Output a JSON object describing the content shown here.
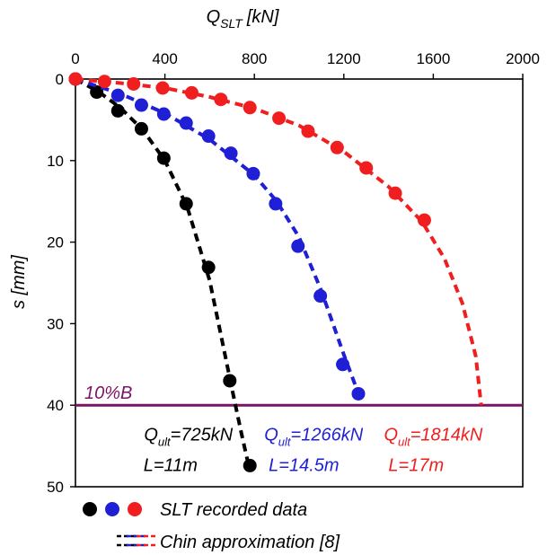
{
  "chart_data": {
    "type": "scatter",
    "xlabel": {
      "main": "Q",
      "sub": "SLT",
      "unit": "[kN]"
    },
    "ylabel": "s [mm]",
    "xlim": [
      0,
      2000
    ],
    "ylim": [
      0,
      50
    ],
    "y_inverted": true,
    "x_axis_position": "top",
    "x_ticks": [
      0,
      400,
      800,
      1200,
      1600,
      2000
    ],
    "y_ticks": [
      0,
      10,
      20,
      30,
      40,
      50
    ],
    "grid": false,
    "series": [
      {
        "key": "l11",
        "color": "#000000",
        "points": [
          {
            "x": 0,
            "y": 0
          },
          {
            "x": 95,
            "y": 1.6
          },
          {
            "x": 190,
            "y": 3.9
          },
          {
            "x": 295,
            "y": 6.1
          },
          {
            "x": 395,
            "y": 9.7
          },
          {
            "x": 495,
            "y": 15.3
          },
          {
            "x": 595,
            "y": 23.1
          },
          {
            "x": 690,
            "y": 37.0
          },
          {
            "x": 780,
            "y": 47.4
          }
        ],
        "fit": [
          {
            "x": 0,
            "y": 0
          },
          {
            "x": 100,
            "y": 1.5
          },
          {
            "x": 200,
            "y": 3.5
          },
          {
            "x": 300,
            "y": 6.2
          },
          {
            "x": 400,
            "y": 10.0
          },
          {
            "x": 500,
            "y": 15.7
          },
          {
            "x": 600,
            "y": 24.7
          },
          {
            "x": 650,
            "y": 31.3
          },
          {
            "x": 700,
            "y": 38.0
          },
          {
            "x": 740,
            "y": 43.2
          },
          {
            "x": 775,
            "y": 47.5
          }
        ]
      },
      {
        "key": "l145",
        "color": "#1f1fd6",
        "points": [
          {
            "x": 0,
            "y": 0
          },
          {
            "x": 190,
            "y": 2.0
          },
          {
            "x": 295,
            "y": 3.2
          },
          {
            "x": 395,
            "y": 4.3
          },
          {
            "x": 495,
            "y": 5.4
          },
          {
            "x": 595,
            "y": 7.0
          },
          {
            "x": 695,
            "y": 9.1
          },
          {
            "x": 795,
            "y": 11.6
          },
          {
            "x": 895,
            "y": 15.3
          },
          {
            "x": 995,
            "y": 20.5
          },
          {
            "x": 1095,
            "y": 26.6
          },
          {
            "x": 1195,
            "y": 35.0
          },
          {
            "x": 1265,
            "y": 38.6
          }
        ],
        "fit": [
          {
            "x": 0,
            "y": 0
          },
          {
            "x": 200,
            "y": 1.8
          },
          {
            "x": 400,
            "y": 4.2
          },
          {
            "x": 600,
            "y": 7.4
          },
          {
            "x": 800,
            "y": 11.8
          },
          {
            "x": 900,
            "y": 15.0
          },
          {
            "x": 1000,
            "y": 19.4
          },
          {
            "x": 1100,
            "y": 26.0
          },
          {
            "x": 1200,
            "y": 33.8
          },
          {
            "x": 1266,
            "y": 38.6
          }
        ]
      },
      {
        "key": "l17",
        "color": "#f01e1e",
        "points": [
          {
            "x": 0,
            "y": 0
          },
          {
            "x": 130,
            "y": 0.3
          },
          {
            "x": 260,
            "y": 0.6
          },
          {
            "x": 390,
            "y": 1.1
          },
          {
            "x": 520,
            "y": 1.7
          },
          {
            "x": 650,
            "y": 2.5
          },
          {
            "x": 780,
            "y": 3.5
          },
          {
            "x": 910,
            "y": 4.8
          },
          {
            "x": 1040,
            "y": 6.4
          },
          {
            "x": 1170,
            "y": 8.4
          },
          {
            "x": 1300,
            "y": 10.9
          },
          {
            "x": 1430,
            "y": 14.0
          },
          {
            "x": 1560,
            "y": 17.3
          }
        ],
        "fit": [
          {
            "x": 0,
            "y": 0
          },
          {
            "x": 200,
            "y": 0.5
          },
          {
            "x": 400,
            "y": 1.1
          },
          {
            "x": 600,
            "y": 2.2
          },
          {
            "x": 800,
            "y": 3.6
          },
          {
            "x": 1000,
            "y": 5.7
          },
          {
            "x": 1200,
            "y": 8.9
          },
          {
            "x": 1400,
            "y": 13.2
          },
          {
            "x": 1550,
            "y": 17.5
          },
          {
            "x": 1650,
            "y": 22.0
          },
          {
            "x": 1730,
            "y": 27.5
          },
          {
            "x": 1790,
            "y": 34.0
          },
          {
            "x": 1814,
            "y": 40.0
          }
        ]
      }
    ],
    "reference_line": {
      "y": 40,
      "label": "10%B",
      "color": "#7b1464"
    },
    "annotations": [
      {
        "key": "l11",
        "q_main": "Q",
        "q_sub": "ult",
        "q_value": "=725kN",
        "length": "L=11m",
        "color": "#000000",
        "x": 505,
        "y": 42.1
      },
      {
        "key": "l145",
        "q_main": "Q",
        "q_sub": "ult",
        "q_value": "=1266kN",
        "length": "L=14.5m",
        "color": "#1f1fd6",
        "x": 1065,
        "y": 42.1
      },
      {
        "key": "l17",
        "q_main": "Q",
        "q_sub": "ult",
        "q_value": "=1814kN",
        "length": "L=17m",
        "color": "#f01e1e",
        "x": 1600,
        "y": 42.1
      }
    ],
    "legend": {
      "placement": "bottom",
      "entries": [
        {
          "label": "SLT recorded data",
          "kind": "markers",
          "colors": [
            "#000000",
            "#1f1fd6",
            "#f01e1e"
          ]
        },
        {
          "label": "Chin approximation [8]",
          "kind": "dashes",
          "colors": [
            "#000000",
            "#1f1fd6",
            "#f01e1e"
          ]
        }
      ]
    }
  }
}
